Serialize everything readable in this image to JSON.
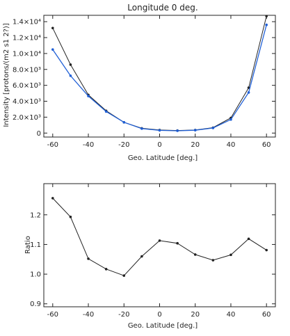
{
  "chart_data": [
    {
      "type": "line",
      "title": "Longitude 0 deg.",
      "xlabel": "Geo. Latitude [deg.]",
      "ylabel": "Intensity [protons/(m2 s1 2?)]",
      "xlim": [
        -65,
        65
      ],
      "ylim": [
        -500,
        14800
      ],
      "x_ticks": [
        -60,
        -40,
        -20,
        0,
        20,
        40,
        60
      ],
      "y_ticks": [
        {
          "value": 0,
          "label": "0"
        },
        {
          "value": 2000,
          "label": "2.0×10³"
        },
        {
          "value": 4000,
          "label": "4.0×10³"
        },
        {
          "value": 6000,
          "label": "6.0×10³"
        },
        {
          "value": 8000,
          "label": "8.0×10³"
        },
        {
          "value": 10000,
          "label": "1.0×10⁴"
        },
        {
          "value": 12000,
          "label": "1.2×10⁴"
        },
        {
          "value": 14000,
          "label": "1.4×10⁴"
        }
      ],
      "grid": false,
      "x": [
        -60,
        -50,
        -40,
        -30,
        -20,
        -10,
        0,
        10,
        20,
        30,
        40,
        50,
        60
      ],
      "series": [
        {
          "color": "#222222",
          "values": [
            13200,
            8600,
            4800,
            2800,
            1350,
            600,
            380,
            320,
            380,
            680,
            1900,
            5700,
            14700
          ]
        },
        {
          "color": "#1f5fd6",
          "values": [
            10500,
            7200,
            4650,
            2700,
            1350,
            560,
            340,
            290,
            360,
            640,
            1700,
            5100,
            13600
          ]
        }
      ]
    },
    {
      "type": "line",
      "title": "",
      "xlabel": "Geo. Latitude [deg.]",
      "ylabel": "Ratio",
      "xlim": [
        -65,
        65
      ],
      "ylim": [
        0.89,
        1.305
      ],
      "x_ticks": [
        -60,
        -40,
        -20,
        0,
        20,
        40,
        60
      ],
      "y_ticks": [
        {
          "value": 0.9,
          "label": "0.9"
        },
        {
          "value": 1.0,
          "label": "1.0"
        },
        {
          "value": 1.1,
          "label": "1.1"
        },
        {
          "value": 1.2,
          "label": "1.2"
        }
      ],
      "grid": false,
      "x": [
        -60,
        -50,
        -40,
        -30,
        -20,
        -10,
        0,
        10,
        20,
        30,
        40,
        50,
        60
      ],
      "series": [
        {
          "color": "#222222",
          "values": [
            1.256,
            1.193,
            1.052,
            1.017,
            0.995,
            1.06,
            1.113,
            1.104,
            1.066,
            1.047,
            1.065,
            1.119,
            1.081
          ]
        }
      ]
    }
  ]
}
